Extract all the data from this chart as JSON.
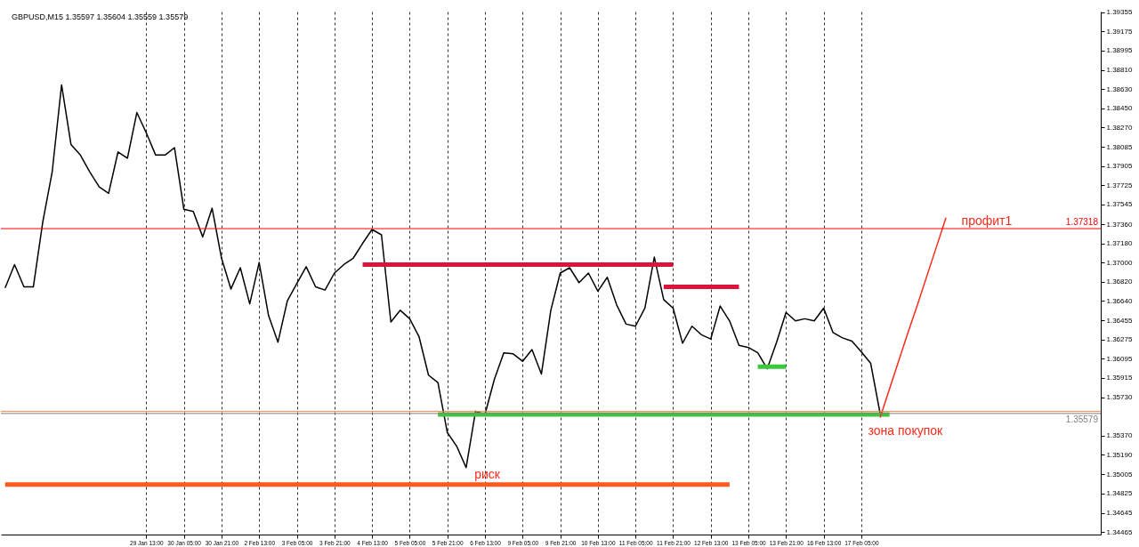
{
  "chart_data": {
    "type": "line",
    "title": "GBPUSD,M15 1.35597 1.35604 1.35559 1.35579",
    "categories": [
      null,
      null,
      null,
      null,
      null,
      null,
      null,
      null,
      null,
      null,
      null,
      null,
      null,
      null,
      null,
      "29 Jan 13:00",
      null,
      null,
      null,
      "30 Jan 05:00",
      null,
      null,
      null,
      "30 Jan 21:00",
      null,
      null,
      null,
      "2 Feb 13:00",
      null,
      null,
      null,
      "3 Feb 05:00",
      null,
      null,
      null,
      "3 Feb 21:00",
      null,
      null,
      null,
      "4 Feb 13:00",
      null,
      null,
      null,
      "5 Feb 05:00",
      null,
      null,
      null,
      "5 Feb 21:00",
      null,
      null,
      null,
      "6 Feb 13:00",
      null,
      null,
      null,
      "9 Feb 05:00",
      null,
      null,
      null,
      "9 Feb 21:00",
      null,
      null,
      null,
      "10 Feb 13:00",
      null,
      null,
      null,
      "11 Feb 05:00",
      null,
      null,
      null,
      "11 Feb 21:00",
      null,
      null,
      null,
      "12 Feb 13:00",
      null,
      null,
      null,
      "13 Feb 05:00",
      null,
      null,
      null,
      "13 Feb 21:00",
      null,
      null,
      null,
      "16 Feb 13:00",
      null,
      null,
      null,
      "17 Feb 05:00",
      null,
      null,
      null,
      null,
      null,
      null,
      null,
      null,
      null,
      null,
      null,
      null,
      null,
      null,
      null,
      null,
      null,
      null,
      null,
      null,
      null,
      null,
      null,
      null,
      null
    ],
    "ylim": [
      1.3444,
      1.3936
    ],
    "yticks": [
      1.34465,
      1.34645,
      1.34825,
      1.35005,
      {
        "value": 1.3519,
        "label": "1.35190"
      },
      {
        "value": 1.3537,
        "label": "1.35370"
      },
      {
        "value": 1.3573,
        "label": "1.35730"
      },
      1.35915,
      1.36095,
      1.36275,
      1.36455,
      {
        "value": 1.3664,
        "label": "1.36640"
      },
      {
        "value": 1.3682,
        "label": "1.36820"
      },
      {
        "value": 1.37,
        "label": "1.37000"
      },
      {
        "value": 1.3718,
        "label": "1.37180"
      },
      {
        "value": 1.3736,
        "label": "1.37360"
      },
      1.37545,
      1.37725,
      1.37905,
      1.38085,
      {
        "value": 1.3827,
        "label": "1.38270"
      },
      {
        "value": 1.3845,
        "label": "1.38450"
      },
      {
        "value": 1.3863,
        "label": "1.38630"
      },
      {
        "value": 1.3881,
        "label": "1.38810"
      },
      1.38995,
      1.39175,
      1.39355
    ],
    "grid": "x",
    "series": [
      {
        "color": "#000000",
        "values": [
          1.3676,
          1.3698,
          1.3677,
          1.3677,
          1.3738,
          1.3785,
          1.3867,
          1.3811,
          1.3801,
          1.3785,
          1.3771,
          1.3765,
          1.3804,
          1.3798,
          1.3841,
          1.3822,
          1.3801,
          1.3801,
          1.3808,
          1.375,
          1.3748,
          1.3724,
          1.3751,
          1.3704,
          1.3675,
          1.3695,
          1.3661,
          1.37,
          1.365,
          1.3625,
          1.3664,
          1.368,
          1.3696,
          1.3677,
          1.3674,
          1.369,
          1.3698,
          1.3704,
          1.3718,
          1.3731,
          1.3726,
          1.3644,
          1.3655,
          1.3647,
          1.363,
          1.3594,
          1.3587,
          1.354,
          1.3527,
          1.3507,
          1.356,
          1.3557,
          1.359,
          1.3615,
          1.3614,
          1.3607,
          1.3618,
          1.3595,
          1.3655,
          1.369,
          1.3695,
          1.3681,
          1.369,
          1.3673,
          1.3686,
          1.366,
          1.3642,
          1.364,
          1.3657,
          1.3705,
          1.3665,
          1.3657,
          1.3624,
          1.364,
          1.3632,
          1.3628,
          1.3659,
          1.3645,
          1.3622,
          1.362,
          1.3615,
          1.36,
          1.3625,
          1.3653,
          1.3645,
          1.3647,
          1.3645,
          1.3657,
          1.3634,
          1.3629,
          1.3626,
          1.3616,
          1.3605,
          1.3558,
          null,
          null,
          null,
          null,
          null,
          null,
          null,
          null,
          null,
          null,
          null,
          null,
          null,
          null,
          null,
          null,
          null,
          null,
          null,
          null,
          null,
          null,
          null
        ]
      },
      {
        "color": "#dc143c",
        "values": [
          null,
          null,
          null,
          null,
          null,
          null,
          null,
          null,
          null,
          null,
          null,
          null,
          null,
          null,
          null,
          null,
          null,
          null,
          null,
          null,
          null,
          null,
          null,
          null,
          null,
          null,
          null,
          null,
          null,
          null,
          null,
          null,
          null,
          null,
          null,
          null,
          null,
          null,
          1.3698,
          1.3698,
          1.3698,
          1.3698,
          1.3698,
          1.3698,
          1.3698,
          1.3698,
          1.3698,
          1.3698,
          1.3698,
          1.3698,
          1.3698,
          1.3698,
          1.3698,
          1.3698,
          1.3698,
          1.3698,
          1.3698,
          1.3698,
          1.3698,
          1.3698,
          1.3698,
          1.3698,
          1.3698,
          1.3698,
          1.3698,
          1.3698,
          1.3698,
          1.3698,
          1.3698,
          1.3698,
          1.3698,
          1.3698,
          null,
          null,
          null,
          null,
          null,
          null,
          null,
          null,
          null,
          null,
          null,
          null,
          null,
          null,
          null,
          null,
          null,
          null,
          null,
          null,
          null,
          null,
          null,
          null,
          null,
          null,
          null,
          null,
          null,
          null,
          null,
          null,
          null,
          null,
          null,
          null,
          null,
          null,
          null,
          null,
          null,
          null,
          null,
          null,
          null
        ]
      },
      {
        "color": "#dc143c",
        "values": [
          null,
          null,
          null,
          null,
          null,
          null,
          null,
          null,
          null,
          null,
          null,
          null,
          null,
          null,
          null,
          null,
          null,
          null,
          null,
          null,
          null,
          null,
          null,
          null,
          null,
          null,
          null,
          null,
          null,
          null,
          null,
          null,
          null,
          null,
          null,
          null,
          null,
          null,
          null,
          null,
          null,
          null,
          null,
          null,
          null,
          null,
          null,
          null,
          null,
          null,
          null,
          null,
          null,
          null,
          null,
          null,
          null,
          null,
          null,
          null,
          null,
          null,
          null,
          null,
          null,
          null,
          null,
          null,
          null,
          null,
          1.3677,
          1.3677,
          1.3677,
          1.3677,
          1.3677,
          1.3677,
          1.3677,
          1.3677,
          1.3677,
          null,
          null,
          null,
          null,
          null,
          null,
          null,
          null,
          null,
          null,
          null,
          null,
          null,
          null,
          null,
          null,
          null,
          null,
          null,
          null,
          null,
          null,
          null,
          null,
          null,
          null,
          null,
          null,
          null,
          null,
          null,
          null,
          null,
          null,
          null,
          null,
          null,
          null
        ]
      },
      {
        "color": "#3cc83c",
        "values": [
          null,
          null,
          null,
          null,
          null,
          null,
          null,
          null,
          null,
          null,
          null,
          null,
          null,
          null,
          null,
          null,
          null,
          null,
          null,
          null,
          null,
          null,
          null,
          null,
          null,
          null,
          null,
          null,
          null,
          null,
          null,
          null,
          null,
          null,
          null,
          null,
          null,
          null,
          null,
          null,
          null,
          null,
          null,
          null,
          null,
          null,
          1.3557,
          1.3557,
          1.3557,
          1.3557,
          1.3557,
          1.3557,
          1.3557,
          1.3557,
          1.3557,
          1.3557,
          1.3557,
          1.3557,
          1.3557,
          1.3557,
          1.3557,
          1.3557,
          1.3557,
          1.3557,
          1.3557,
          1.3557,
          1.3557,
          1.3557,
          1.3557,
          1.3557,
          1.3557,
          1.3557,
          1.3557,
          1.3557,
          1.3557,
          1.3557,
          1.3557,
          1.3557,
          1.3557,
          1.3557,
          1.3557,
          1.3557,
          1.3557,
          1.3557,
          1.3557,
          1.3557,
          1.3557,
          1.3557,
          1.3557,
          1.3557,
          1.3557,
          1.3557,
          1.3557,
          1.3557,
          1.3557,
          null,
          null,
          null,
          null,
          null,
          null,
          null,
          null,
          null,
          null,
          null,
          null,
          null,
          null,
          null,
          null,
          null,
          null,
          null,
          null,
          null,
          null
        ]
      },
      {
        "color": "#3cc83c",
        "values": [
          null,
          null,
          null,
          null,
          null,
          null,
          null,
          null,
          null,
          null,
          null,
          null,
          null,
          null,
          null,
          null,
          null,
          null,
          null,
          null,
          null,
          null,
          null,
          null,
          null,
          null,
          null,
          null,
          null,
          null,
          null,
          null,
          null,
          null,
          null,
          null,
          null,
          null,
          null,
          null,
          null,
          null,
          null,
          null,
          null,
          null,
          null,
          null,
          null,
          null,
          null,
          null,
          null,
          null,
          null,
          null,
          null,
          null,
          null,
          null,
          null,
          null,
          null,
          null,
          null,
          null,
          null,
          null,
          null,
          null,
          null,
          null,
          null,
          null,
          null,
          null,
          null,
          null,
          null,
          null,
          1.3602,
          1.3602,
          1.3602,
          1.3602,
          null,
          null,
          null,
          null,
          null,
          null,
          null,
          null,
          null,
          null,
          null,
          null,
          null,
          null,
          null,
          null,
          null,
          null,
          null,
          null,
          null,
          null,
          null,
          null,
          null,
          null,
          null,
          null,
          null,
          null,
          null,
          null,
          null
        ]
      },
      {
        "color": "#ff5a1e",
        "values": [
          1.3491,
          1.3491,
          1.3491,
          1.3491,
          1.3491,
          1.3491,
          1.3491,
          1.3491,
          1.3491,
          1.3491,
          1.3491,
          1.3491,
          1.3491,
          1.3491,
          1.3491,
          1.3491,
          1.3491,
          1.3491,
          1.3491,
          1.3491,
          1.3491,
          1.3491,
          1.3491,
          1.3491,
          1.3491,
          1.3491,
          1.3491,
          1.3491,
          1.3491,
          1.3491,
          1.3491,
          1.3491,
          1.3491,
          1.3491,
          1.3491,
          1.3491,
          1.3491,
          1.3491,
          1.3491,
          1.3491,
          1.3491,
          1.3491,
          1.3491,
          1.3491,
          1.3491,
          1.3491,
          1.3491,
          1.3491,
          1.3491,
          1.3491,
          1.3491,
          1.3491,
          1.3491,
          1.3491,
          1.3491,
          1.3491,
          1.3491,
          1.3491,
          1.3491,
          1.3491,
          1.3491,
          1.3491,
          1.3491,
          1.3491,
          1.3491,
          1.3491,
          1.3491,
          1.3491,
          1.3491,
          1.3491,
          1.3491,
          1.3491,
          1.3491,
          1.3491,
          1.3491,
          1.3491,
          1.3491,
          1.3491,
          null,
          null,
          null,
          null,
          null,
          null,
          null,
          null,
          null,
          null,
          null,
          null,
          null,
          null,
          null,
          null,
          null,
          null,
          null,
          null,
          null,
          null,
          null,
          null,
          null,
          null,
          null,
          null,
          null,
          null,
          null,
          null,
          null,
          null,
          null,
          null,
          null,
          null,
          null
        ]
      },
      {
        "color": "#ff2a1a",
        "values": [
          null,
          null,
          null,
          null,
          null,
          null,
          null,
          null,
          null,
          null,
          null,
          null,
          null,
          null,
          null,
          null,
          null,
          null,
          null,
          null,
          null,
          null,
          null,
          null,
          null,
          null,
          null,
          null,
          null,
          null,
          null,
          null,
          null,
          null,
          null,
          null,
          null,
          null,
          null,
          null,
          null,
          null,
          null,
          null,
          null,
          null,
          null,
          null,
          null,
          null,
          null,
          null,
          null,
          null,
          null,
          null,
          null,
          null,
          null,
          null,
          null,
          null,
          null,
          null,
          null,
          null,
          null,
          null,
          null,
          null,
          null,
          null,
          null,
          null,
          null,
          null,
          null,
          null,
          null,
          null,
          null,
          null,
          null,
          null,
          null,
          null,
          null,
          null,
          null,
          null,
          null,
          null,
          null,
          1.3554,
          1.3581,
          1.3608,
          1.3635,
          1.3661,
          1.3688,
          1.3715,
          1.3742,
          null,
          null,
          null,
          null,
          null,
          null,
          null,
          null,
          null,
          null,
          null,
          null,
          null,
          null,
          null,
          null
        ]
      }
    ],
    "ref_lines": [
      {
        "axis": "y",
        "value": 1.37318,
        "label": "1.37318",
        "color": "#ff0000"
      },
      {
        "axis": "y",
        "value": 1.356,
        "color": "#ff7f50"
      },
      {
        "axis": "y",
        "value": 1.35579,
        "label": "1.35579",
        "color": "#808080"
      }
    ],
    "annotations": [
      "профит1",
      "зона покупок",
      "риск"
    ]
  }
}
